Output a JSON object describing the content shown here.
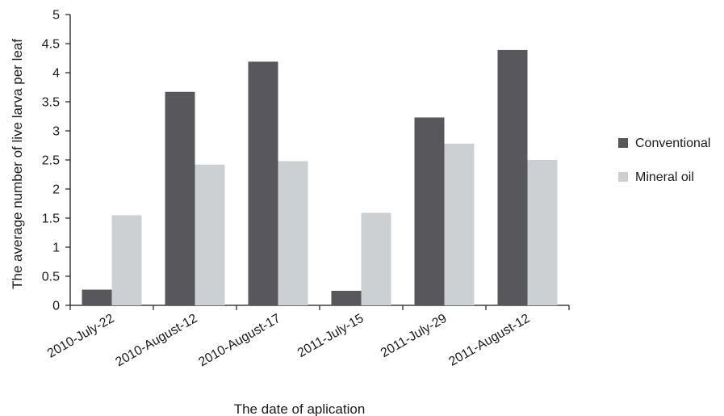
{
  "chart_data": {
    "type": "bar",
    "xlabel": "The date of aplication",
    "ylabel": "The average number of live larva per leaf",
    "ylim": [
      0,
      5
    ],
    "yticks": [
      0,
      0.5,
      1,
      1.5,
      2,
      2.5,
      3,
      3.5,
      4,
      4.5,
      5
    ],
    "ytick_labels": [
      "0",
      "0.5",
      "1",
      "1.5",
      "2",
      "2.5",
      "3",
      "3.5",
      "4",
      "4.5",
      "5"
    ],
    "categories": [
      "2010-July-22",
      "2010-August-12",
      "2010-August-17",
      "2011-July-15",
      "2011-July-29",
      "2011-August-12"
    ],
    "series": [
      {
        "name": "Conventional",
        "color": "#58585c",
        "values": [
          0.27,
          3.67,
          4.19,
          0.25,
          3.23,
          4.39
        ]
      },
      {
        "name": "Mineral oil",
        "color": "#cdd0d3",
        "values": [
          1.55,
          2.42,
          2.48,
          1.59,
          2.78,
          2.5
        ]
      }
    ],
    "grid": false,
    "legend_position": "right"
  }
}
